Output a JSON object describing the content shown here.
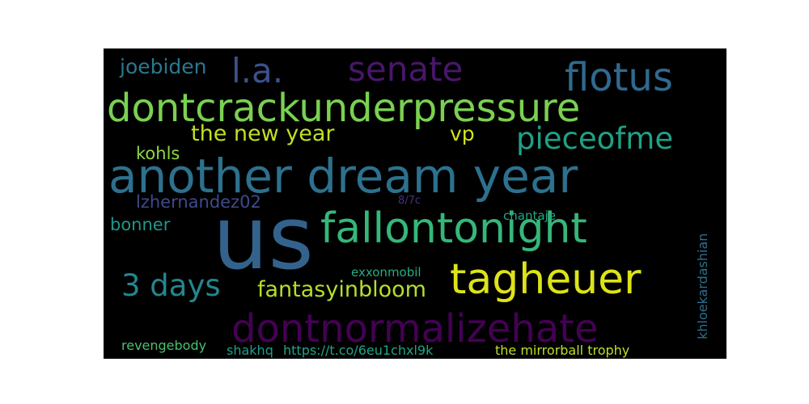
{
  "words": [
    {
      "text": "us",
      "color": "#33638d"
    },
    {
      "text": "another dream year",
      "color": "#2c718e"
    },
    {
      "text": "dontcrackunderpressure",
      "color": "#7ad151"
    },
    {
      "text": "fallontonight",
      "color": "#35b779"
    },
    {
      "text": "tagheuer",
      "color": "#dde318"
    },
    {
      "text": "dontnormalizehate",
      "color": "#440154"
    },
    {
      "text": "flotus",
      "color": "#30698e"
    },
    {
      "text": "senate",
      "color": "#481769"
    },
    {
      "text": "l.a.",
      "color": "#3b528b"
    },
    {
      "text": "pieceofme",
      "color": "#1fa187"
    },
    {
      "text": "3 days",
      "color": "#24868e"
    },
    {
      "text": "the new year",
      "color": "#c2df23"
    },
    {
      "text": "fantasyinbloom",
      "color": "#b5de2b"
    },
    {
      "text": "joebiden",
      "color": "#2a788e"
    },
    {
      "text": "vp",
      "color": "#d2e21b"
    },
    {
      "text": "kohls",
      "color": "#90d743"
    },
    {
      "text": "lzhernandez02",
      "color": "#3e4a89"
    },
    {
      "text": "bonner",
      "color": "#1f988b"
    },
    {
      "text": "8/7c",
      "color": "#46327e"
    },
    {
      "text": "chantaje",
      "color": "#22a884"
    },
    {
      "text": "exxonmobil",
      "color": "#26ad81"
    },
    {
      "text": "khloekardashian",
      "color": "#2e6f8e"
    },
    {
      "text": "revengebody",
      "color": "#4ac16d"
    },
    {
      "text": "shakhq",
      "color": "#1f9e89"
    },
    {
      "text": "https://t.co/6eu1chxl9k",
      "color": "#20a486"
    },
    {
      "text": "the mirrorball trophy",
      "color": "#bddf26"
    }
  ]
}
